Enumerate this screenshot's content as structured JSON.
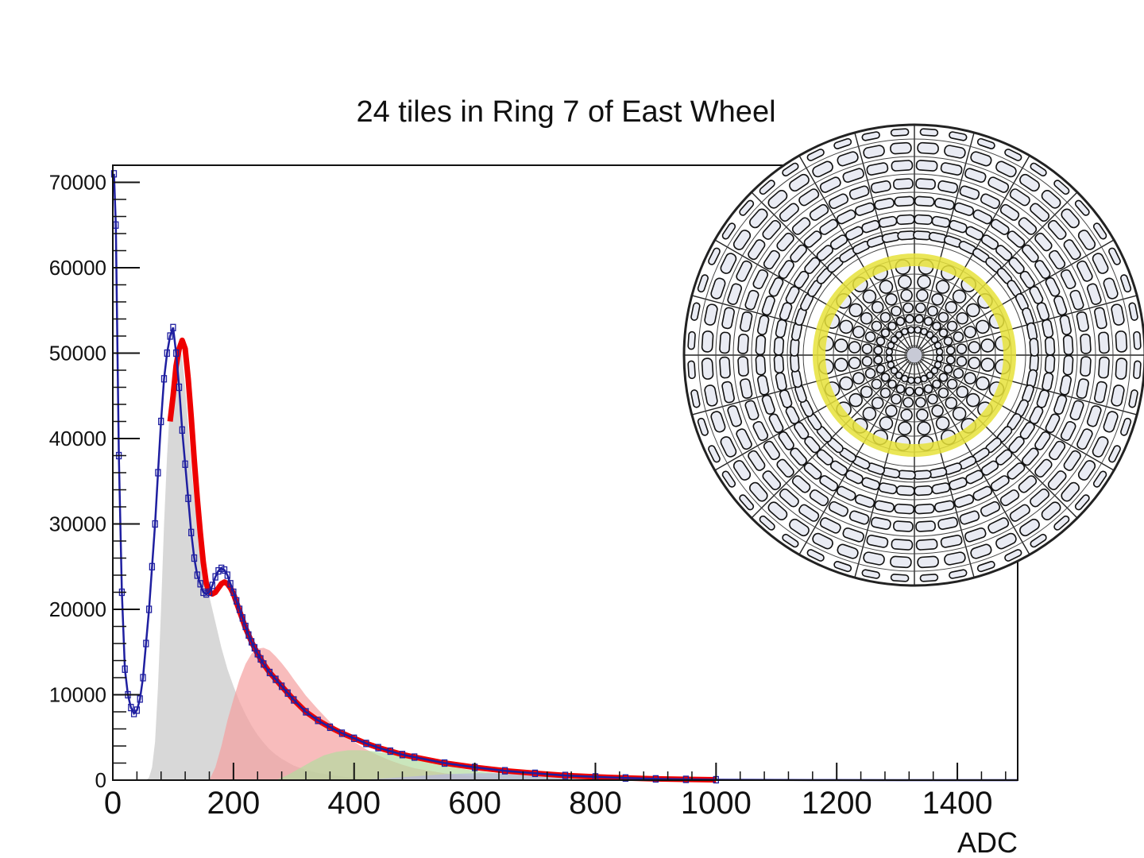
{
  "chart_data": {
    "type": "line",
    "title": "24 tiles in Ring 7 of East Wheel",
    "xlabel": "ADC",
    "ylabel": "",
    "xlim": [
      0,
      1500
    ],
    "ylim": [
      0,
      72000
    ],
    "x_ticks": [
      "0",
      "200",
      "400",
      "600",
      "800",
      "1000",
      "1200",
      "1400"
    ],
    "y_ticks": [
      "0",
      "10000",
      "20000",
      "30000",
      "40000",
      "50000",
      "60000",
      "70000"
    ],
    "grid": false,
    "legend": "none",
    "series": [
      {
        "kind": "data",
        "color": "#1f1fa0",
        "x": [
          2,
          5,
          10,
          15,
          20,
          25,
          30,
          35,
          40,
          45,
          50,
          55,
          60,
          65,
          70,
          75,
          80,
          85,
          90,
          95,
          100,
          105,
          110,
          115,
          120,
          125,
          130,
          135,
          140,
          145,
          150,
          155,
          160,
          165,
          170,
          175,
          180,
          185,
          190,
          195,
          200,
          205,
          210,
          215,
          220,
          225,
          230,
          235,
          240,
          245,
          250,
          260,
          270,
          280,
          290,
          300,
          320,
          340,
          360,
          380,
          400,
          420,
          440,
          460,
          480,
          500,
          550,
          600,
          650,
          700,
          750,
          800,
          850,
          900,
          950,
          1000,
          1100,
          1200,
          1300,
          1400,
          1500
        ],
        "y": [
          71000,
          65000,
          38000,
          22000,
          13000,
          10000,
          8500,
          7800,
          8200,
          9500,
          12000,
          16000,
          20000,
          25000,
          30000,
          36000,
          42000,
          47000,
          50000,
          52000,
          53000,
          50000,
          46000,
          41000,
          37000,
          33000,
          29000,
          26000,
          24000,
          23000,
          22000,
          21800,
          22000,
          22800,
          23800,
          24500,
          24800,
          24600,
          24000,
          23000,
          22000,
          21000,
          20000,
          19000,
          18000,
          17000,
          16200,
          15500,
          14800,
          14200,
          13600,
          12600,
          11800,
          11000,
          10200,
          9400,
          8000,
          7000,
          6200,
          5500,
          4900,
          4300,
          3800,
          3400,
          3000,
          2700,
          2000,
          1500,
          1100,
          800,
          550,
          380,
          250,
          150,
          90,
          50,
          20,
          8,
          3,
          1,
          0
        ]
      },
      {
        "kind": "fit",
        "color": "#ee0000",
        "x": [
          95,
          100,
          105,
          110,
          115,
          120,
          125,
          130,
          135,
          140,
          145,
          150,
          155,
          160,
          165,
          170,
          175,
          180,
          185,
          190,
          195,
          200,
          205,
          210,
          215,
          220,
          225,
          230,
          235,
          240,
          245,
          250,
          260,
          270,
          280,
          290,
          300,
          320,
          340,
          360,
          380,
          400,
          420,
          440,
          460,
          480,
          500,
          550,
          600,
          650,
          700,
          750,
          800,
          850,
          900,
          950,
          1000
        ],
        "y": [
          42000,
          45000,
          48500,
          50500,
          51500,
          50500,
          47000,
          42500,
          37500,
          33000,
          29000,
          25500,
          23000,
          22000,
          21800,
          22000,
          22500,
          23000,
          23200,
          23000,
          22500,
          21800,
          20800,
          19800,
          18800,
          17800,
          17000,
          16200,
          15500,
          14800,
          14200,
          13600,
          12600,
          11800,
          11000,
          10200,
          9400,
          8000,
          7000,
          6200,
          5500,
          4900,
          4300,
          3800,
          3400,
          3000,
          2700,
          2000,
          1500,
          1100,
          800,
          550,
          380,
          250,
          150,
          90,
          50
        ]
      },
      {
        "kind": "component",
        "color": "#c8c8c8",
        "x": [
          55,
          60,
          65,
          70,
          75,
          80,
          85,
          90,
          95,
          100,
          105,
          110,
          115,
          120,
          125,
          130,
          135,
          140,
          145,
          150,
          155,
          160,
          165,
          170,
          175,
          180,
          190,
          200,
          210,
          220,
          230,
          240,
          250,
          260,
          270,
          280,
          290,
          300,
          320,
          340,
          360,
          380,
          400,
          450,
          500
        ],
        "y": [
          0,
          300,
          1500,
          4500,
          11000,
          20000,
          30000,
          38000,
          44000,
          48500,
          50500,
          51000,
          49500,
          46000,
          41500,
          37000,
          33000,
          30000,
          27500,
          25000,
          23000,
          21500,
          20000,
          18500,
          17000,
          15500,
          13000,
          11000,
          9200,
          7700,
          6400,
          5300,
          4400,
          3600,
          3000,
          2500,
          2100,
          1700,
          1200,
          850,
          600,
          420,
          300,
          120,
          40
        ]
      },
      {
        "kind": "component",
        "color": "#f5a0a0",
        "x": [
          160,
          170,
          180,
          190,
          200,
          210,
          220,
          230,
          240,
          250,
          260,
          270,
          280,
          290,
          300,
          320,
          340,
          360,
          380,
          400,
          420,
          440,
          460,
          480,
          500,
          550,
          600,
          650,
          700
        ],
        "y": [
          0,
          1500,
          4000,
          7000,
          9500,
          11800,
          13600,
          14800,
          15400,
          15500,
          15200,
          14500,
          13700,
          12800,
          11800,
          9900,
          8300,
          6800,
          5600,
          4500,
          3600,
          2900,
          2300,
          1800,
          1400,
          800,
          420,
          200,
          80
        ]
      },
      {
        "kind": "component",
        "color": "#b4dca0",
        "x": [
          270,
          290,
          310,
          330,
          350,
          370,
          390,
          410,
          430,
          450,
          470,
          500,
          550,
          600,
          650,
          700,
          750,
          800,
          850,
          900
        ],
        "y": [
          0,
          600,
          1400,
          2200,
          2900,
          3300,
          3500,
          3500,
          3400,
          3200,
          2900,
          2400,
          1700,
          1100,
          700,
          400,
          220,
          110,
          50,
          20
        ]
      },
      {
        "kind": "component",
        "color": "#b4b4dc",
        "x": [
          400,
          450,
          500,
          550,
          600,
          650,
          700,
          750,
          800,
          850,
          900,
          950,
          1000
        ],
        "y": [
          0,
          200,
          450,
          700,
          800,
          820,
          760,
          650,
          520,
          380,
          250,
          140,
          60
        ]
      }
    ]
  },
  "inset": {
    "highlight_color": "#e6e23a",
    "highlight_ring": 7
  }
}
